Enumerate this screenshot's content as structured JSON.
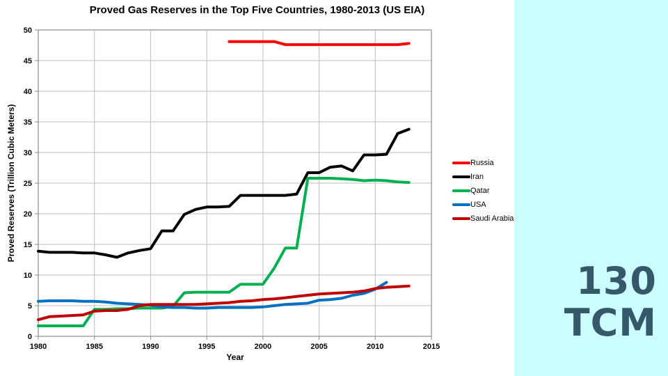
{
  "chart": {
    "title": "Proved Gas Reserves in the Top Five Countries, 1980-2013 (US EIA)",
    "x_axis_title": "Year",
    "y_axis_title": "Proved Reserves (Trillion Cubic Meters)"
  },
  "annotation": {
    "line1": "130",
    "line2": "TCM",
    "text_color": "#35596B",
    "panel_color": "#CCFEFF"
  },
  "chart_data": {
    "type": "line",
    "title": "Proved Gas Reserves in the Top Five Countries, 1980-2013 (US EIA)",
    "xlabel": "Year",
    "ylabel": "Proved Reserves (Trillion Cubic Meters)",
    "x_range": [
      1980,
      2015
    ],
    "y_range": [
      0,
      50
    ],
    "x_ticks": [
      1980,
      1985,
      1990,
      1995,
      2000,
      2005,
      2010,
      2015
    ],
    "y_ticks": [
      0,
      5,
      10,
      15,
      20,
      25,
      30,
      35,
      40,
      45,
      50
    ],
    "grid": true,
    "grid_color": "#BDBDBD",
    "axis_color": "#8C8C8C",
    "legend_position": "right",
    "series": [
      {
        "name": "Russia",
        "color": "#FF0000",
        "points": [
          [
            1997,
            48.1
          ],
          [
            1998,
            48.1
          ],
          [
            1999,
            48.1
          ],
          [
            2000,
            48.1
          ],
          [
            2001,
            48.1
          ],
          [
            2002,
            47.6
          ],
          [
            2003,
            47.6
          ],
          [
            2004,
            47.6
          ],
          [
            2005,
            47.6
          ],
          [
            2006,
            47.6
          ],
          [
            2007,
            47.6
          ],
          [
            2008,
            47.6
          ],
          [
            2009,
            47.6
          ],
          [
            2010,
            47.6
          ],
          [
            2011,
            47.6
          ],
          [
            2012,
            47.6
          ],
          [
            2013,
            47.8
          ]
        ]
      },
      {
        "name": "Iran",
        "color": "#000000",
        "points": [
          [
            1980,
            13.9
          ],
          [
            1981,
            13.7
          ],
          [
            1982,
            13.7
          ],
          [
            1983,
            13.7
          ],
          [
            1984,
            13.6
          ],
          [
            1985,
            13.6
          ],
          [
            1986,
            13.3
          ],
          [
            1987,
            12.9
          ],
          [
            1988,
            13.6
          ],
          [
            1989,
            14.0
          ],
          [
            1990,
            14.3
          ],
          [
            1991,
            17.2
          ],
          [
            1992,
            17.2
          ],
          [
            1993,
            19.9
          ],
          [
            1994,
            20.7
          ],
          [
            1995,
            21.1
          ],
          [
            1996,
            21.1
          ],
          [
            1997,
            21.2
          ],
          [
            1998,
            23.0
          ],
          [
            1999,
            23.0
          ],
          [
            2000,
            23.0
          ],
          [
            2001,
            23.0
          ],
          [
            2002,
            23.0
          ],
          [
            2003,
            23.2
          ],
          [
            2004,
            26.7
          ],
          [
            2005,
            26.7
          ],
          [
            2006,
            27.6
          ],
          [
            2007,
            27.8
          ],
          [
            2008,
            27.0
          ],
          [
            2009,
            29.6
          ],
          [
            2010,
            29.6
          ],
          [
            2011,
            29.7
          ],
          [
            2012,
            33.1
          ],
          [
            2013,
            33.8
          ]
        ]
      },
      {
        "name": "Qatar",
        "color": "#00B050",
        "points": [
          [
            1980,
            1.7
          ],
          [
            1981,
            1.7
          ],
          [
            1982,
            1.7
          ],
          [
            1983,
            1.7
          ],
          [
            1984,
            1.7
          ],
          [
            1985,
            4.4
          ],
          [
            1986,
            4.4
          ],
          [
            1987,
            4.5
          ],
          [
            1988,
            4.5
          ],
          [
            1989,
            4.6
          ],
          [
            1990,
            4.6
          ],
          [
            1991,
            4.6
          ],
          [
            1992,
            4.9
          ],
          [
            1993,
            7.1
          ],
          [
            1994,
            7.2
          ],
          [
            1995,
            7.2
          ],
          [
            1996,
            7.2
          ],
          [
            1997,
            7.2
          ],
          [
            1998,
            8.5
          ],
          [
            1999,
            8.5
          ],
          [
            2000,
            8.5
          ],
          [
            2001,
            11.1
          ],
          [
            2002,
            14.4
          ],
          [
            2003,
            14.4
          ],
          [
            2004,
            25.8
          ],
          [
            2005,
            25.8
          ],
          [
            2006,
            25.8
          ],
          [
            2007,
            25.7
          ],
          [
            2008,
            25.6
          ],
          [
            2009,
            25.4
          ],
          [
            2010,
            25.5
          ],
          [
            2011,
            25.4
          ],
          [
            2012,
            25.2
          ],
          [
            2013,
            25.1
          ]
        ]
      },
      {
        "name": "USA",
        "color": "#0070C0",
        "points": [
          [
            1980,
            5.7
          ],
          [
            1981,
            5.8
          ],
          [
            1982,
            5.8
          ],
          [
            1983,
            5.8
          ],
          [
            1984,
            5.7
          ],
          [
            1985,
            5.7
          ],
          [
            1986,
            5.6
          ],
          [
            1987,
            5.4
          ],
          [
            1988,
            5.3
          ],
          [
            1989,
            5.2
          ],
          [
            1990,
            5.1
          ],
          [
            1991,
            4.8
          ],
          [
            1992,
            4.7
          ],
          [
            1993,
            4.7
          ],
          [
            1994,
            4.6
          ],
          [
            1995,
            4.6
          ],
          [
            1996,
            4.7
          ],
          [
            1997,
            4.7
          ],
          [
            1998,
            4.7
          ],
          [
            1999,
            4.7
          ],
          [
            2000,
            4.8
          ],
          [
            2001,
            5.0
          ],
          [
            2002,
            5.2
          ],
          [
            2003,
            5.3
          ],
          [
            2004,
            5.4
          ],
          [
            2005,
            5.9
          ],
          [
            2006,
            6.0
          ],
          [
            2007,
            6.2
          ],
          [
            2008,
            6.7
          ],
          [
            2009,
            7.0
          ],
          [
            2010,
            7.7
          ],
          [
            2011,
            8.8
          ]
        ]
      },
      {
        "name": "Saudi Arabia",
        "color": "#C00000",
        "points": [
          [
            1980,
            2.7
          ],
          [
            1981,
            3.2
          ],
          [
            1982,
            3.3
          ],
          [
            1983,
            3.4
          ],
          [
            1984,
            3.5
          ],
          [
            1985,
            4.1
          ],
          [
            1986,
            4.2
          ],
          [
            1987,
            4.2
          ],
          [
            1988,
            4.4
          ],
          [
            1989,
            5.0
          ],
          [
            1990,
            5.2
          ],
          [
            1991,
            5.2
          ],
          [
            1992,
            5.2
          ],
          [
            1993,
            5.2
          ],
          [
            1994,
            5.2
          ],
          [
            1995,
            5.3
          ],
          [
            1996,
            5.4
          ],
          [
            1997,
            5.5
          ],
          [
            1998,
            5.7
          ],
          [
            1999,
            5.8
          ],
          [
            2000,
            6.0
          ],
          [
            2001,
            6.1
          ],
          [
            2002,
            6.3
          ],
          [
            2003,
            6.5
          ],
          [
            2004,
            6.7
          ],
          [
            2005,
            6.9
          ],
          [
            2006,
            7.0
          ],
          [
            2007,
            7.1
          ],
          [
            2008,
            7.2
          ],
          [
            2009,
            7.4
          ],
          [
            2010,
            7.8
          ],
          [
            2011,
            8.0
          ],
          [
            2012,
            8.1
          ],
          [
            2013,
            8.2
          ]
        ]
      }
    ]
  }
}
